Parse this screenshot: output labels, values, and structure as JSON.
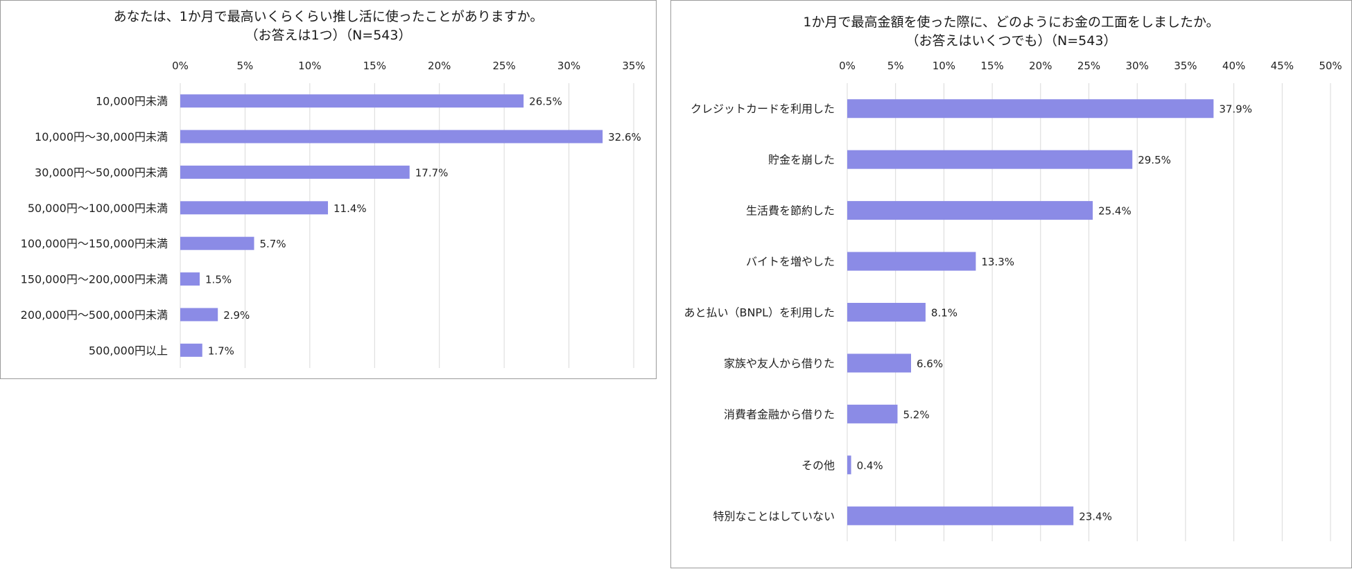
{
  "chart_data": [
    {
      "type": "bar",
      "orientation": "horizontal",
      "title": "あなたは、1か月で最高いくらくらい推し活に使ったことがありますか。",
      "subtitle": "（お答えは1つ）（N=543）",
      "categories": [
        "10,000円未満",
        "10,000円～30,000円未満",
        "30,000円～50,000円未満",
        "50,000円～100,000円未満",
        "100,000円～150,000円未満",
        "150,000円～200,000円未満",
        "200,000円～500,000円未満",
        "500,000円以上"
      ],
      "values": [
        26.5,
        32.6,
        17.7,
        11.4,
        5.7,
        1.5,
        2.9,
        1.7
      ],
      "value_labels": [
        "26.5%",
        "32.6%",
        "17.7%",
        "11.4%",
        "5.7%",
        "1.5%",
        "2.9%",
        "1.7%"
      ],
      "xlim": [
        0,
        35
      ],
      "ticks": [
        "0%",
        "5%",
        "10%",
        "15%",
        "20%",
        "25%",
        "30%",
        "35%"
      ],
      "xlabel": "",
      "ylabel": "",
      "grid": true,
      "axis_position": "top",
      "bar_color": "#8B8BE6"
    },
    {
      "type": "bar",
      "orientation": "horizontal",
      "title": "1か月で最高金額を使った際に、どのようにお金の工面をしましたか。",
      "subtitle": "（お答えはいくつでも）（N=543）",
      "categories": [
        "クレジットカードを利用した",
        "貯金を崩した",
        "生活費を節約した",
        "バイトを増やした",
        "あと払い（BNPL）を利用した",
        "家族や友人から借りた",
        "消費者金融から借りた",
        "その他",
        "特別なことはしていない"
      ],
      "values": [
        37.9,
        29.5,
        25.4,
        13.3,
        8.1,
        6.6,
        5.2,
        0.4,
        23.4
      ],
      "value_labels": [
        "37.9%",
        "29.5%",
        "25.4%",
        "13.3%",
        "8.1%",
        "6.6%",
        "5.2%",
        "0.4%",
        "23.4%"
      ],
      "xlim": [
        0,
        50
      ],
      "ticks": [
        "0%",
        "5%",
        "10%",
        "15%",
        "20%",
        "25%",
        "30%",
        "35%",
        "40%",
        "45%",
        "50%"
      ],
      "xlabel": "",
      "ylabel": "",
      "grid": true,
      "axis_position": "top",
      "bar_color": "#8B8BE6"
    }
  ]
}
